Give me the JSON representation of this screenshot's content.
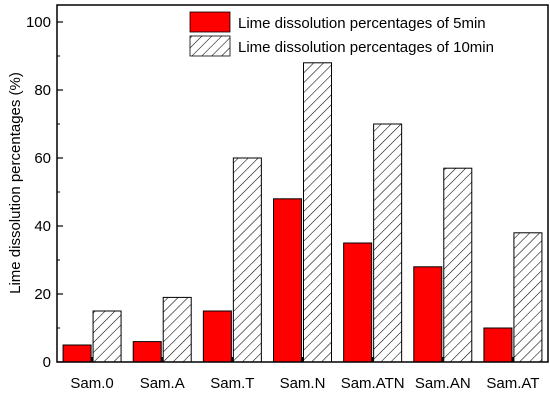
{
  "chart_data": {
    "type": "bar",
    "categories": [
      "Sam.0",
      "Sam.A",
      "Sam.T",
      "Sam.N",
      "Sam.ATN",
      "Sam.AN",
      "Sam.AT"
    ],
    "series": [
      {
        "name": "Lime  dissolution percentages of 5min",
        "values": [
          5,
          6,
          15,
          48,
          35,
          28,
          10
        ],
        "color": "#ff0000",
        "pattern": "solid"
      },
      {
        "name": "Lime  dissolution percentages of 10min",
        "values": [
          15,
          19,
          60,
          88,
          70,
          57,
          38
        ],
        "color": "#ffffff",
        "pattern": "diagonal-hatch"
      }
    ],
    "ylabel": "Lime  dissolution percentages (%)",
    "ylim": [
      0,
      105
    ],
    "yticks": [
      "0",
      "20",
      "40",
      "60",
      "80",
      "100"
    ],
    "legend_position": "top-right",
    "grid": false
  }
}
